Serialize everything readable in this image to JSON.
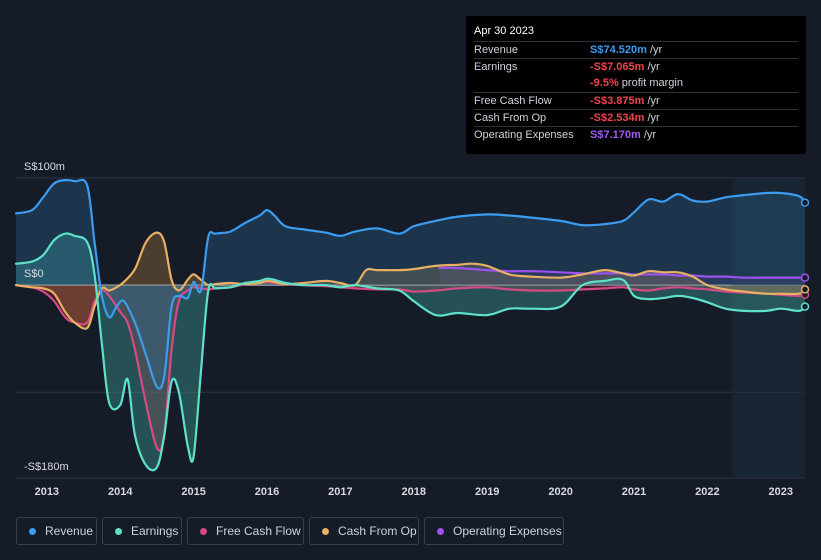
{
  "tooltip": {
    "date": "Apr 30 2023",
    "rows": [
      {
        "label": "Revenue",
        "value": "S$74.520m",
        "unit": " /yr",
        "color": "#3b9cf0"
      },
      {
        "label": "Earnings",
        "value": "-S$7.065m",
        "unit": " /yr",
        "color": "#f2444d"
      },
      {
        "label": "",
        "value": "-9.5%",
        "unit": " profit margin",
        "color": "#f2444d"
      },
      {
        "label": "Free Cash Flow",
        "value": "-S$3.875m",
        "unit": " /yr",
        "color": "#f2444d"
      },
      {
        "label": "Cash From Op",
        "value": "-S$2.534m",
        "unit": " /yr",
        "color": "#f2444d"
      },
      {
        "label": "Operating Expenses",
        "value": "S$7.170m",
        "unit": " /yr",
        "color": "#a35cf0"
      }
    ]
  },
  "legend": [
    {
      "label": "Revenue",
      "color": "#3b9cf0"
    },
    {
      "label": "Earnings",
      "color": "#5fe0c8"
    },
    {
      "label": "Free Cash Flow",
      "color": "#d44a86"
    },
    {
      "label": "Cash From Op",
      "color": "#e8b064"
    },
    {
      "label": "Operating Expenses",
      "color": "#9d52f0"
    }
  ],
  "chart_data": {
    "type": "area",
    "y_axis_labels": [
      "S$100m",
      "S$0",
      "-S$180m"
    ],
    "ylim": [
      -180,
      100
    ],
    "xlim": [
      2012.58,
      2023.33
    ],
    "x_ticks": [
      "2013",
      "2014",
      "2015",
      "2016",
      "2017",
      "2018",
      "2019",
      "2020",
      "2021",
      "2022",
      "2023"
    ],
    "x_tick_values": [
      2013,
      2014,
      2015,
      2016,
      2017,
      2018,
      2019,
      2020,
      2021,
      2022,
      2023
    ],
    "forecast_start": 2022.33,
    "series": [
      {
        "name": "Revenue",
        "color": "#3b9cf0",
        "fill": "rgba(45,110,160,0.32)",
        "x": [
          2012.58,
          2012.8,
          2012.95,
          2013.1,
          2013.25,
          2013.38,
          2013.55,
          2013.65,
          2013.75,
          2013.85,
          2013.95,
          2014.05,
          2014.2,
          2014.35,
          2014.5,
          2014.6,
          2014.7,
          2014.8,
          2014.92,
          2015.0,
          2015.1,
          2015.2,
          2015.3,
          2015.5,
          2015.7,
          2015.9,
          2016.0,
          2016.1,
          2016.25,
          2016.5,
          2016.8,
          2017.0,
          2017.2,
          2017.5,
          2017.8,
          2018.0,
          2018.3,
          2018.6,
          2019.0,
          2019.3,
          2019.6,
          2020.0,
          2020.3,
          2020.6,
          2020.85,
          2021.0,
          2021.2,
          2021.4,
          2021.6,
          2021.8,
          2022.0,
          2022.25,
          2022.5,
          2022.8,
          2023.0,
          2023.25,
          2023.33
        ],
        "y": [
          67,
          70,
          82,
          95,
          98,
          97,
          93,
          40,
          -10,
          -30,
          -20,
          -15,
          -35,
          -65,
          -95,
          -85,
          -20,
          -10,
          -12,
          3,
          -5,
          45,
          48,
          50,
          58,
          65,
          70,
          65,
          55,
          52,
          49,
          46,
          50,
          53,
          48,
          55,
          60,
          64,
          66,
          65,
          63,
          60,
          56,
          57,
          60,
          68,
          80,
          78,
          85,
          79,
          78,
          82,
          84,
          86,
          86,
          83,
          77
        ]
      },
      {
        "name": "Earnings",
        "color": "#5fe0c8",
        "fill": "rgba(70,190,175,0.33)",
        "x": [
          2012.58,
          2012.8,
          2012.95,
          2013.1,
          2013.25,
          2013.38,
          2013.55,
          2013.65,
          2013.75,
          2013.85,
          2014.0,
          2014.1,
          2014.2,
          2014.35,
          2014.5,
          2014.6,
          2014.7,
          2014.8,
          2014.92,
          2015.0,
          2015.1,
          2015.2,
          2015.3,
          2015.5,
          2015.7,
          2015.9,
          2016.0,
          2016.1,
          2016.25,
          2016.5,
          2016.8,
          2017.0,
          2017.2,
          2017.5,
          2017.8,
          2018.0,
          2018.3,
          2018.6,
          2019.0,
          2019.3,
          2019.6,
          2020.0,
          2020.3,
          2020.6,
          2020.85,
          2021.0,
          2021.2,
          2021.4,
          2021.6,
          2021.8,
          2022.0,
          2022.25,
          2022.5,
          2022.8,
          2023.0,
          2023.25,
          2023.33
        ],
        "y": [
          20,
          22,
          28,
          42,
          48,
          46,
          40,
          10,
          -55,
          -110,
          -112,
          -88,
          -140,
          -168,
          -170,
          -140,
          -90,
          -100,
          -150,
          -160,
          -80,
          -5,
          -3,
          -2,
          2,
          4,
          6,
          5,
          2,
          0,
          0,
          -2,
          0,
          -3,
          -5,
          -15,
          -28,
          -26,
          -28,
          -22,
          -22,
          -20,
          0,
          4,
          5,
          -10,
          -13,
          -12,
          -10,
          -12,
          -16,
          -22,
          -24,
          -24,
          -22,
          -24,
          -20
        ]
      },
      {
        "name": "Free Cash Flow",
        "color": "#d44a86",
        "fill": "rgba(150,30,50,0.38)",
        "x": [
          2012.58,
          2012.8,
          2012.95,
          2013.1,
          2013.25,
          2013.38,
          2013.55,
          2013.65,
          2013.75,
          2013.85,
          2014.0,
          2014.1,
          2014.2,
          2014.35,
          2014.5,
          2014.6,
          2014.7,
          2014.8,
          2014.92,
          2015.0,
          2015.1,
          2015.2,
          2015.3,
          2015.5,
          2015.7,
          2015.9,
          2016.0,
          2016.1,
          2016.25,
          2016.5,
          2016.8,
          2017.0,
          2017.2,
          2017.5,
          2017.8,
          2018.0,
          2018.3,
          2018.6,
          2019.0,
          2019.3,
          2019.6,
          2020.0,
          2020.3,
          2020.6,
          2020.85,
          2021.0,
          2021.2,
          2021.4,
          2021.6,
          2021.8,
          2022.0,
          2022.25,
          2022.5,
          2022.8,
          2023.0,
          2023.25,
          2023.33
        ],
        "y": [
          0,
          -2,
          -6,
          -15,
          -30,
          -35,
          -35,
          -15,
          -5,
          -10,
          -25,
          -35,
          -60,
          -110,
          -152,
          -140,
          -60,
          -15,
          -5,
          -2,
          -3,
          -4,
          -3,
          -2,
          1,
          2,
          3,
          2,
          1,
          0,
          -1,
          -2,
          -3,
          -4,
          -4,
          -6,
          -5,
          -3,
          -2,
          -4,
          -5,
          -5,
          -4,
          -3,
          -2,
          -4,
          -5,
          -3,
          -2,
          -3,
          -4,
          -6,
          -7,
          -8,
          -9,
          -10,
          -9
        ]
      },
      {
        "name": "Cash From Op",
        "color": "#e8b064",
        "fill": "rgba(180,130,60,0.35)",
        "x": [
          2012.58,
          2012.8,
          2012.95,
          2013.1,
          2013.25,
          2013.38,
          2013.55,
          2013.65,
          2013.75,
          2013.85,
          2013.95,
          2014.05,
          2014.2,
          2014.35,
          2014.5,
          2014.6,
          2014.7,
          2014.8,
          2014.92,
          2015.0,
          2015.1,
          2015.2,
          2015.3,
          2015.5,
          2015.7,
          2015.9,
          2016.0,
          2016.1,
          2016.25,
          2016.5,
          2016.8,
          2017.0,
          2017.2,
          2017.35,
          2017.5,
          2017.8,
          2018.0,
          2018.3,
          2018.6,
          2018.8,
          2019.0,
          2019.3,
          2019.6,
          2020.0,
          2020.3,
          2020.6,
          2020.85,
          2021.0,
          2021.2,
          2021.4,
          2021.6,
          2021.8,
          2022.0,
          2022.25,
          2022.5,
          2022.8,
          2023.0,
          2023.25,
          2023.33
        ],
        "y": [
          0,
          -2,
          -3,
          -8,
          -25,
          -35,
          -40,
          -20,
          -3,
          -5,
          -2,
          3,
          15,
          40,
          49,
          40,
          5,
          -5,
          5,
          10,
          5,
          0,
          1,
          2,
          1,
          2,
          4,
          3,
          1,
          2,
          4,
          2,
          0,
          14,
          14,
          14,
          15,
          18,
          19,
          20,
          18,
          10,
          8,
          7,
          10,
          14,
          11,
          9,
          13,
          12,
          12,
          8,
          0,
          -4,
          -6,
          -8,
          -8,
          -8,
          -4
        ]
      },
      {
        "name": "Operating Expenses",
        "color": "#9d52f0",
        "fill": "rgba(130,70,200,0.18)",
        "x": [
          2018.35,
          2018.6,
          2019.0,
          2019.3,
          2019.6,
          2020.0,
          2020.3,
          2020.6,
          2020.85,
          2021.0,
          2021.2,
          2021.4,
          2021.6,
          2021.8,
          2022.0,
          2022.25,
          2022.5,
          2022.8,
          2023.0,
          2023.25,
          2023.33
        ],
        "y": [
          16,
          16,
          14,
          13,
          13,
          12,
          11,
          11,
          11,
          10,
          10,
          10,
          9,
          9,
          8,
          8,
          7,
          7,
          7,
          7,
          7
        ]
      }
    ]
  }
}
